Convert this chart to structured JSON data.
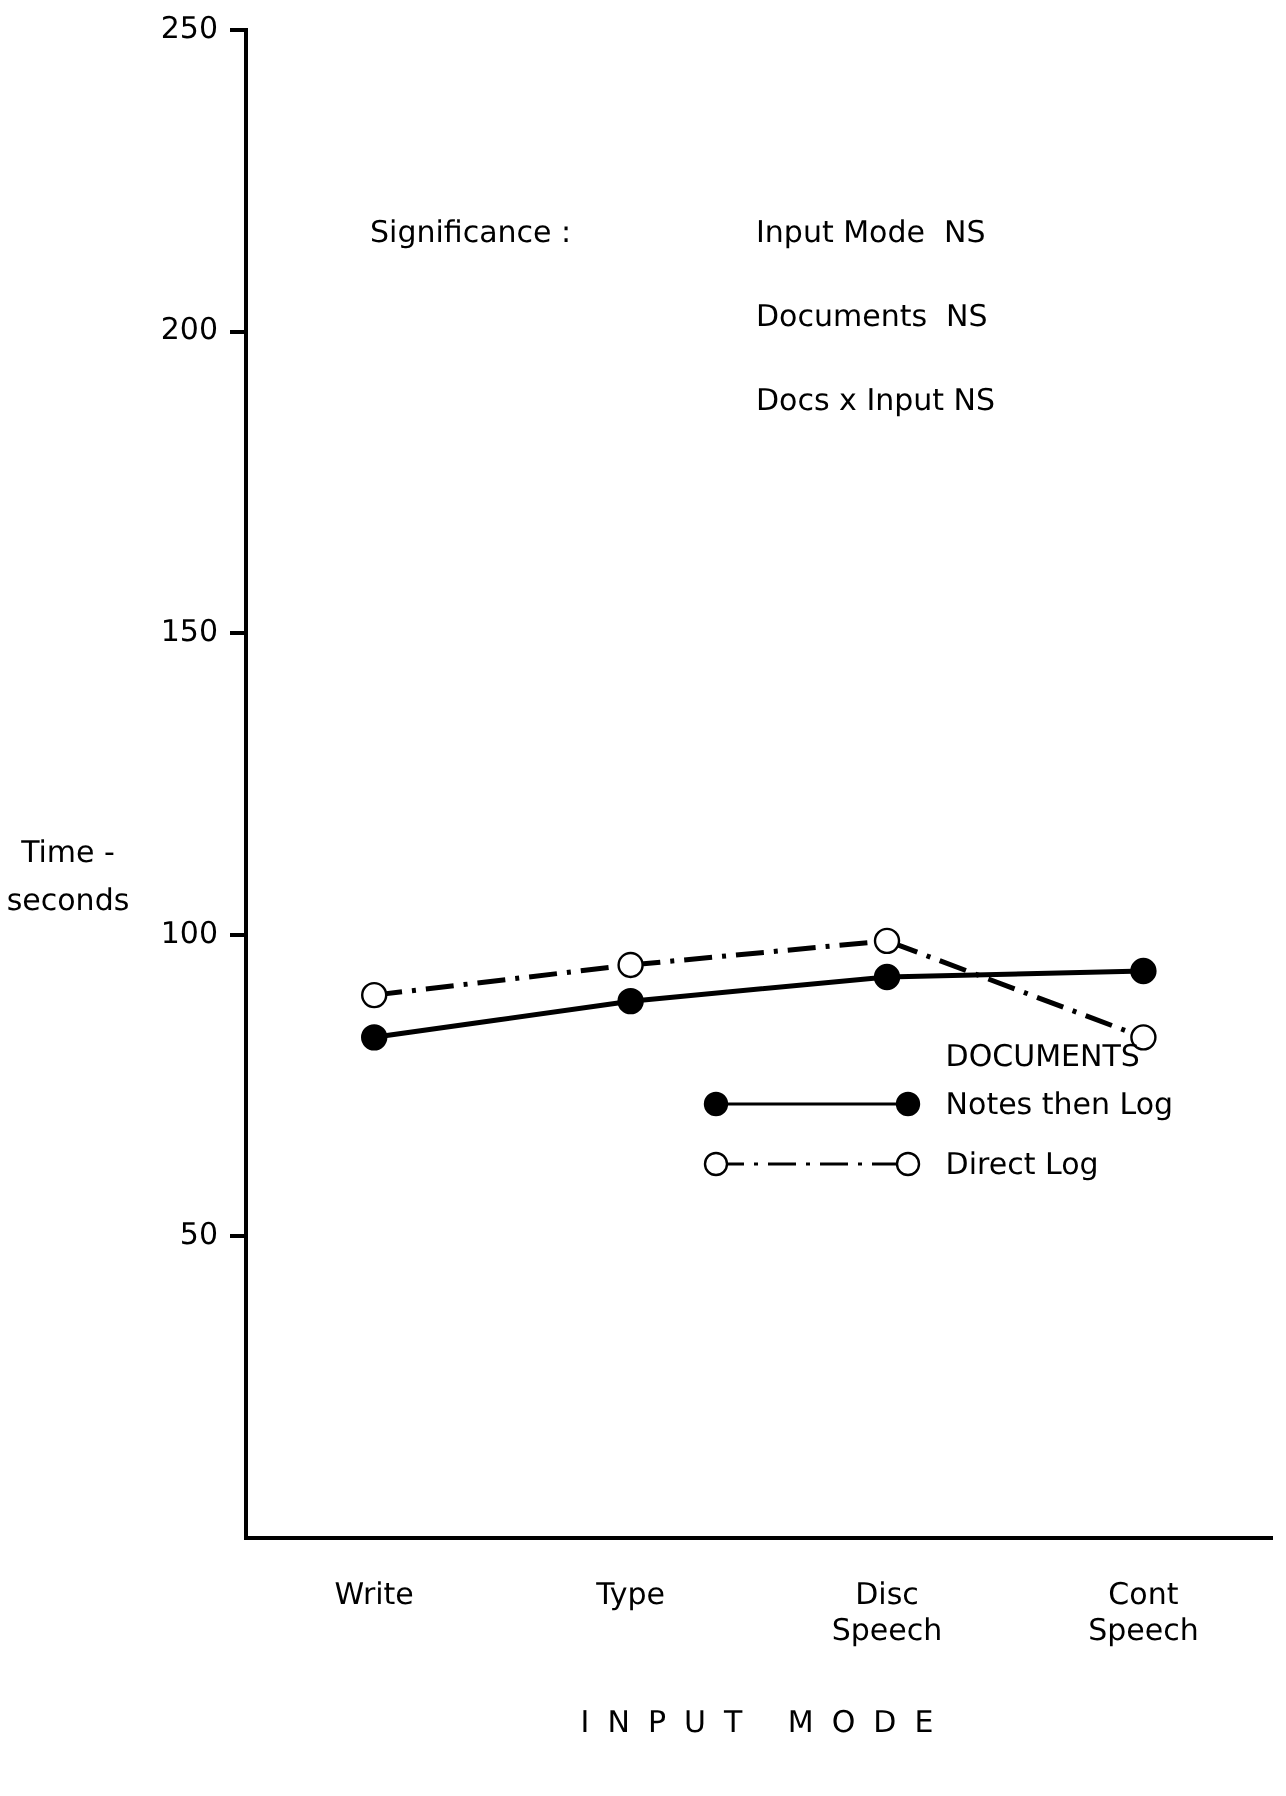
{
  "chart_data": {
    "type": "line",
    "xlabel": "INPUT MODE",
    "ylabel": "Time -\nseconds",
    "legend_title": "DOCUMENTS",
    "categories": [
      "Write",
      "Type",
      "Disc\nSpeech",
      "Cont\nSpeech"
    ],
    "series": [
      {
        "name": "Notes then Log",
        "color": "#000000",
        "values": [
          83,
          89,
          93,
          94
        ],
        "line_style": "solid"
      },
      {
        "name": "Direct Log",
        "color": "#000000",
        "values": [
          90,
          95,
          99,
          83
        ],
        "line_style": "dashed"
      }
    ],
    "ylim": [
      0,
      250
    ],
    "yticks": [
      50,
      100,
      150,
      200,
      250
    ],
    "grid": false,
    "legend": "bottom right",
    "marker": "circle",
    "annotations": [
      "Significance :",
      "Input Mode  NS",
      "Documents  NS",
      "Docs x Input NS"
    ]
  }
}
